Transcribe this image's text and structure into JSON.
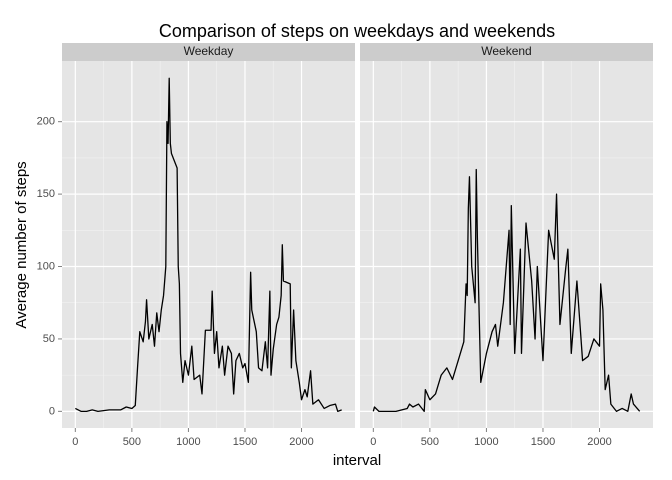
{
  "title": "Comparison of steps on weekdays and weekends",
  "x_label": "interval",
  "y_label": "Average number of steps",
  "chart_data": [
    {
      "type": "line",
      "title": "Weekday",
      "color": "#000000",
      "grid": true,
      "xlim": [
        -117.75,
        2472.75
      ],
      "ylim": [
        -11.5,
        241.9
      ],
      "xticks": [
        0,
        500,
        1000,
        1500,
        2000
      ],
      "yticks": [
        0,
        50,
        100,
        150,
        200
      ],
      "x": [
        0,
        50,
        100,
        150,
        200,
        300,
        400,
        450,
        500,
        530,
        550,
        570,
        600,
        620,
        630,
        650,
        680,
        700,
        720,
        740,
        760,
        780,
        800,
        810,
        820,
        830,
        840,
        850,
        900,
        910,
        920,
        930,
        950,
        970,
        1000,
        1030,
        1050,
        1100,
        1120,
        1150,
        1200,
        1210,
        1230,
        1250,
        1270,
        1300,
        1320,
        1350,
        1380,
        1400,
        1420,
        1450,
        1480,
        1500,
        1530,
        1550,
        1560,
        1600,
        1620,
        1650,
        1680,
        1700,
        1720,
        1730,
        1750,
        1780,
        1800,
        1820,
        1830,
        1840,
        1900,
        1910,
        1930,
        1950,
        1980,
        2000,
        2030,
        2050,
        2080,
        2100,
        2150,
        2200,
        2250,
        2300,
        2320,
        2355
      ],
      "values": [
        2,
        0,
        0,
        1,
        0,
        1,
        1,
        3,
        2,
        4,
        30,
        55,
        48,
        62,
        77,
        50,
        60,
        45,
        68,
        55,
        70,
        80,
        100,
        200,
        185,
        230,
        185,
        178,
        168,
        100,
        88,
        40,
        20,
        35,
        25,
        45,
        22,
        25,
        12,
        56,
        56,
        83,
        40,
        55,
        30,
        45,
        25,
        45,
        40,
        12,
        35,
        40,
        30,
        33,
        20,
        96,
        70,
        55,
        30,
        28,
        48,
        30,
        83,
        25,
        43,
        60,
        65,
        80,
        115,
        90,
        88,
        30,
        70,
        35,
        20,
        8,
        15,
        10,
        28,
        5,
        8,
        2,
        4,
        5,
        0,
        1
      ]
    },
    {
      "type": "line",
      "title": "Weekend",
      "color": "#000000",
      "grid": true,
      "xlim": [
        -117.75,
        2472.75
      ],
      "ylim": [
        -11.5,
        241.9
      ],
      "xticks": [
        0,
        500,
        1000,
        1500,
        2000
      ],
      "yticks": [
        0,
        50,
        100,
        150,
        200
      ],
      "x": [
        0,
        10,
        50,
        200,
        300,
        320,
        350,
        400,
        450,
        460,
        500,
        550,
        600,
        650,
        700,
        750,
        800,
        820,
        830,
        840,
        850,
        870,
        900,
        910,
        920,
        950,
        1000,
        1050,
        1080,
        1100,
        1150,
        1200,
        1210,
        1220,
        1250,
        1300,
        1310,
        1350,
        1400,
        1430,
        1450,
        1500,
        1550,
        1600,
        1620,
        1650,
        1700,
        1720,
        1750,
        1800,
        1850,
        1900,
        1950,
        2000,
        2010,
        2030,
        2050,
        2080,
        2100,
        2150,
        2200,
        2250,
        2280,
        2300,
        2355
      ],
      "values": [
        0,
        3,
        0,
        0,
        2,
        5,
        3,
        5,
        0,
        15,
        8,
        12,
        25,
        30,
        22,
        35,
        48,
        88,
        80,
        140,
        162,
        100,
        75,
        167,
        120,
        20,
        40,
        55,
        60,
        45,
        75,
        125,
        60,
        142,
        40,
        112,
        40,
        130,
        90,
        50,
        100,
        35,
        125,
        105,
        150,
        60,
        98,
        112,
        40,
        90,
        35,
        38,
        50,
        45,
        88,
        70,
        15,
        25,
        5,
        0,
        2,
        0,
        12,
        5,
        0
      ]
    }
  ]
}
